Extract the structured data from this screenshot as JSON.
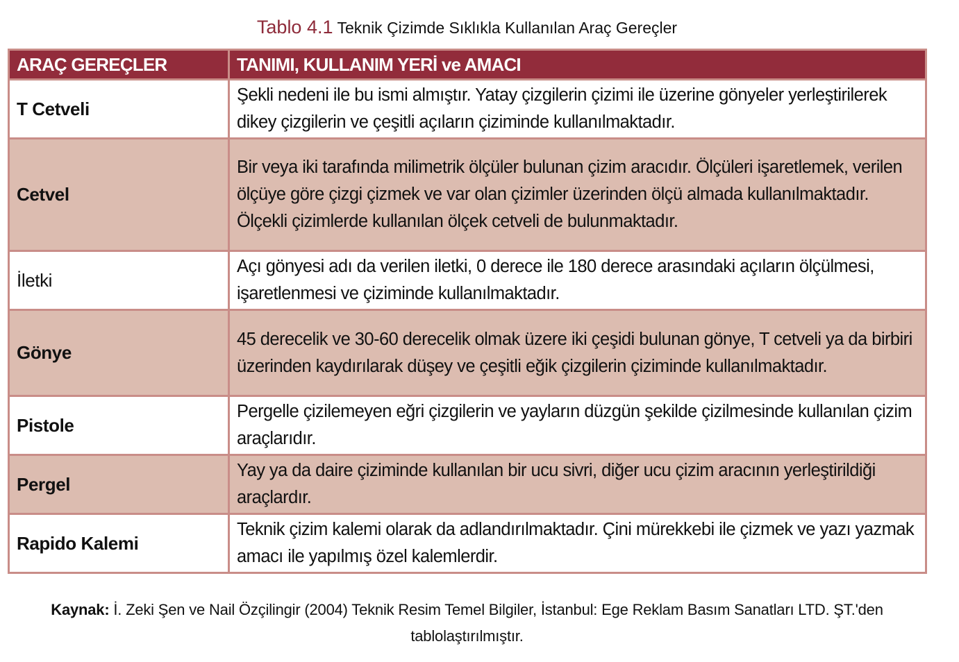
{
  "caption": {
    "number": "Tablo 4.1",
    "title": "Teknik Çizimde Sıklıkla Kullanılan Araç Gereçler"
  },
  "header": {
    "col1": "ARAÇ GEREÇLER",
    "col2": "TANIMI, KULLANIM YERİ ve AMACI"
  },
  "rows": [
    {
      "tool": "T Cetveli",
      "desc": "Şekli nedeni ile bu ismi almıştır. Yatay çizgilerin çizimi ile üzerine gönyeler yerleştirilerek dikey çizgilerin ve çeşitli açıların çiziminde kullanılmaktadır."
    },
    {
      "tool": "Cetvel",
      "desc": "Bir veya iki tarafında milimetrik ölçüler bulunan çizim aracıdır. Ölçüleri işaretlemek, verilen ölçüye göre çizgi çizmek ve var olan çizimler üzerinden ölçü almada kullanılmaktadır. Ölçekli çizimlerde kullanılan ölçek cetveli de bulunmaktadır."
    },
    {
      "tool": "İletki",
      "desc": "Açı gönyesi adı da verilen iletki, 0 derece ile 180 derece arasındaki açıların ölçülmesi, işaretlenmesi ve çiziminde kullanılmaktadır."
    },
    {
      "tool": "Gönye",
      "desc": "45 derecelik ve 30-60 derecelik olmak üzere iki çeşidi bulunan gönye, T cetveli ya da birbiri üzerinden kaydırılarak düşey ve çeşitli eğik çizgilerin çiziminde kullanılmaktadır."
    },
    {
      "tool": "Pistole",
      "desc": "Pergelle çizilemeyen eğri çizgilerin ve yayların düzgün şekilde çizilmesinde kullanılan çizim araçlarıdır."
    },
    {
      "tool": "Pergel",
      "desc": "Yay ya da daire çiziminde kullanılan bir ucu sivri, diğer ucu çizim aracının yerleştirildiği araçlardır."
    },
    {
      "tool": "Rapido Kalemi",
      "desc": "Teknik çizim kalemi olarak da adlandırılmaktadır. Çini mürekkebi ile çizmek ve yazı yazmak amacı ile yapılmış özel kalemlerdir."
    }
  ],
  "source": {
    "label": "Kaynak:",
    "text": "İ. Zeki Şen ve Nail Özçilingir (2004) Teknik Resim Temel Bilgiler, İstanbul: Ege Reklam Basım Sanatları LTD. ŞT.'den tablolaştırılmıştır."
  },
  "colors": {
    "header_bg": "#922c3b",
    "alt_row_bg": "#dcbcb0",
    "border": "#c98d88",
    "caption_number": "#8e2b3a"
  }
}
